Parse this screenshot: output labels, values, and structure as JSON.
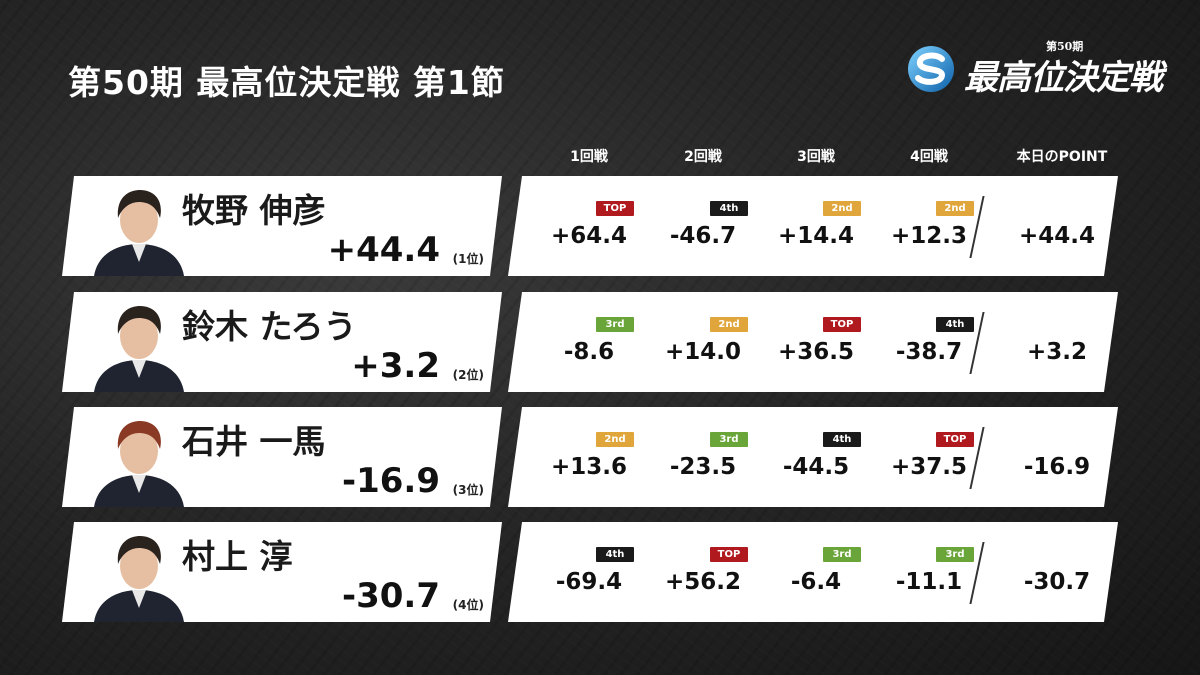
{
  "header": {
    "title": "第50期 最高位決定戦 第1節",
    "logo_small": "第50期",
    "logo_text": "最高位決定戦"
  },
  "columns": [
    "1回戦",
    "2回戦",
    "3回戦",
    "4回戦",
    "本日のPOINT"
  ],
  "badge_colors": {
    "TOP": "#b0191e",
    "2nd": "#e0a63b",
    "3rd": "#6aa53a",
    "4th": "#1a1a1a"
  },
  "players": [
    {
      "name": "牧野 伸彦",
      "total": "+44.4",
      "rank": "(1位)",
      "games": [
        {
          "place": "TOP",
          "score": "+64.4"
        },
        {
          "place": "4th",
          "score": "-46.7"
        },
        {
          "place": "2nd",
          "score": "+14.4"
        },
        {
          "place": "2nd",
          "score": "+12.3"
        }
      ],
      "point": "+44.4",
      "avatar_icon": "person-avatar-icon"
    },
    {
      "name": "鈴木 たろう",
      "total": "+3.2",
      "rank": "(2位)",
      "games": [
        {
          "place": "3rd",
          "score": "-8.6"
        },
        {
          "place": "2nd",
          "score": "+14.0"
        },
        {
          "place": "TOP",
          "score": "+36.5"
        },
        {
          "place": "4th",
          "score": "-38.7"
        }
      ],
      "point": "+3.2",
      "avatar_icon": "person-avatar-icon"
    },
    {
      "name": "石井 一馬",
      "total": "-16.9",
      "rank": "(3位)",
      "games": [
        {
          "place": "2nd",
          "score": "+13.6"
        },
        {
          "place": "3rd",
          "score": "-23.5"
        },
        {
          "place": "4th",
          "score": "-44.5"
        },
        {
          "place": "TOP",
          "score": "+37.5"
        }
      ],
      "point": "-16.9",
      "avatar_icon": "person-avatar-icon"
    },
    {
      "name": "村上 淳",
      "total": "-30.7",
      "rank": "(4位)",
      "games": [
        {
          "place": "4th",
          "score": "-69.4"
        },
        {
          "place": "TOP",
          "score": "+56.2"
        },
        {
          "place": "3rd",
          "score": "-6.4"
        },
        {
          "place": "3rd",
          "score": "-11.1"
        }
      ],
      "point": "-30.7",
      "avatar_icon": "person-avatar-icon"
    }
  ]
}
